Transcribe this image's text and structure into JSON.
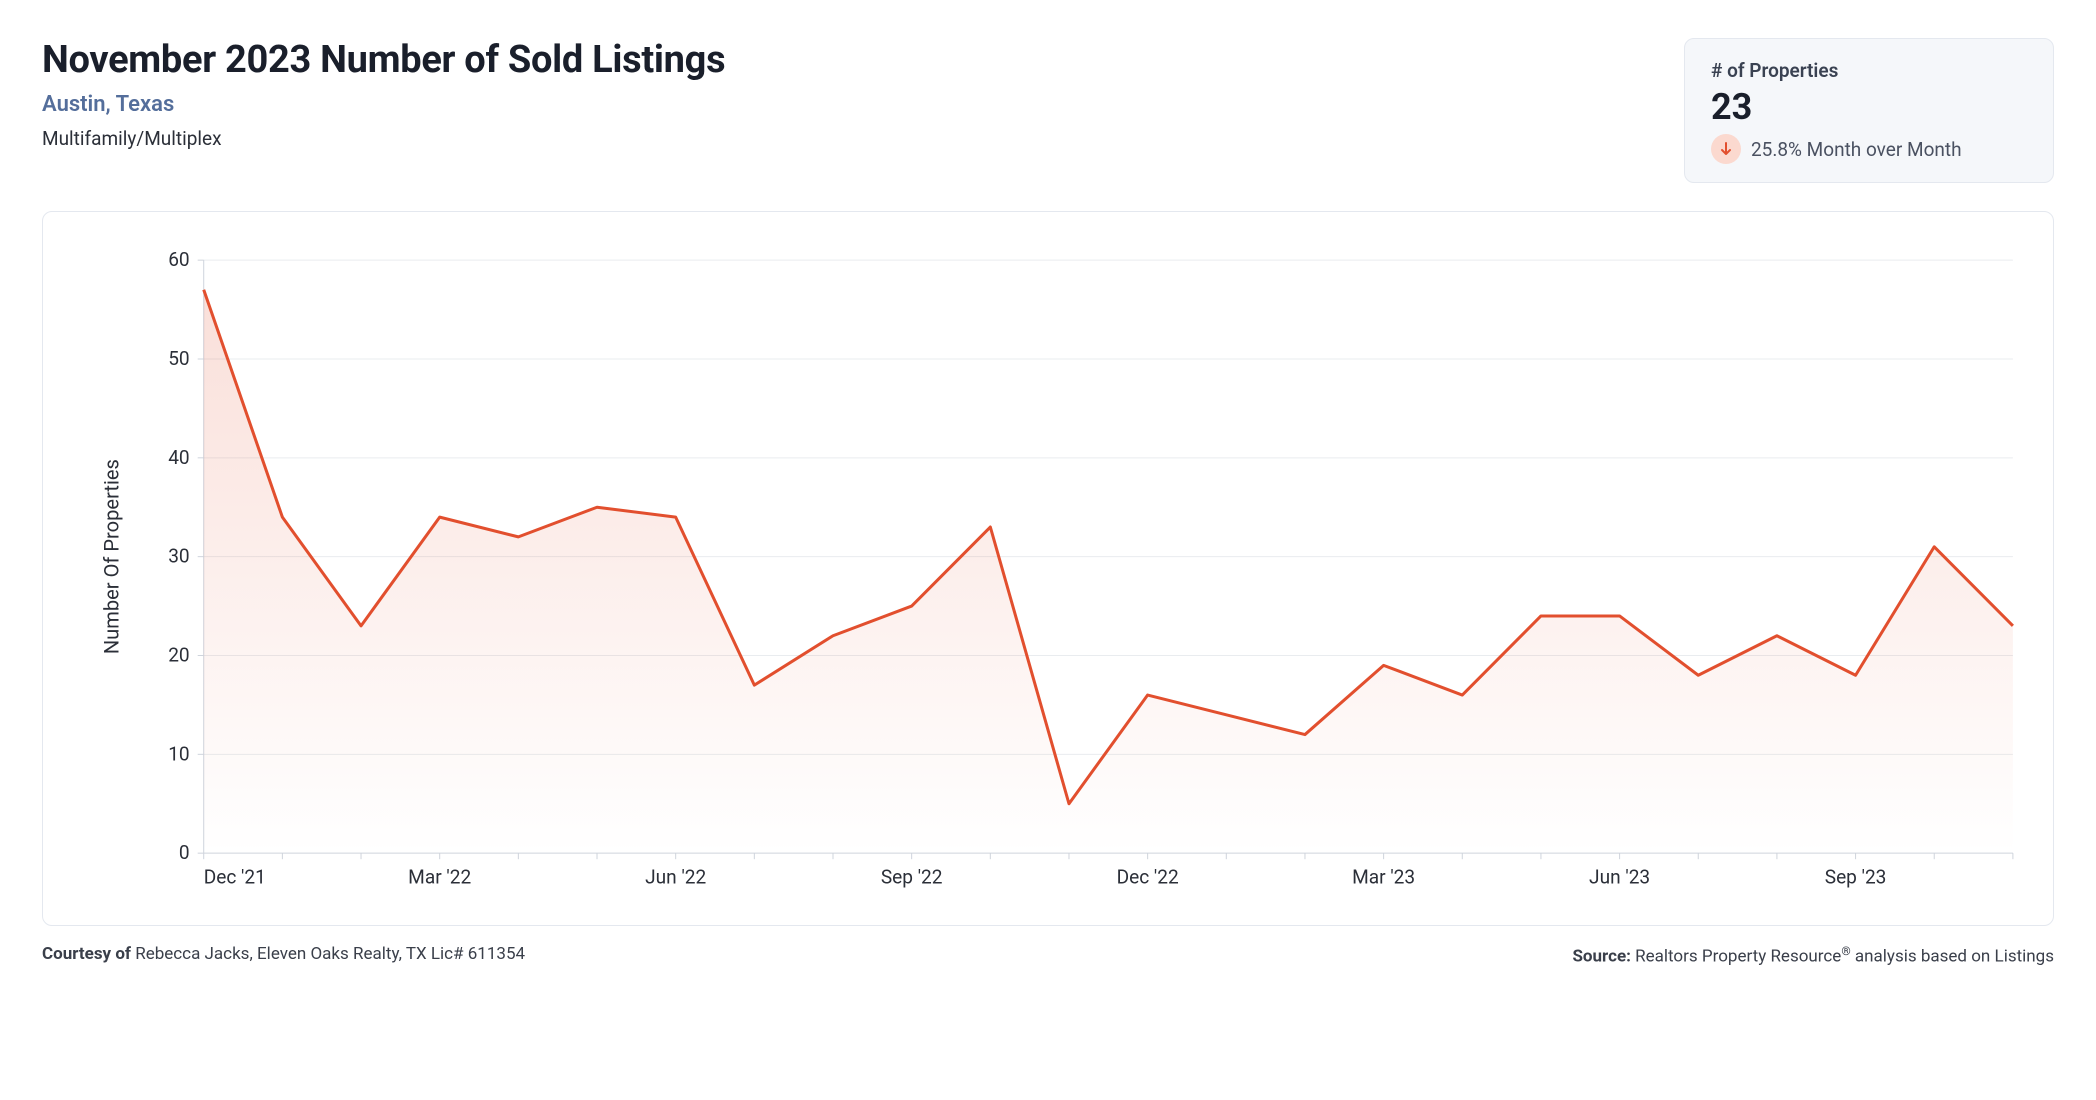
{
  "header": {
    "title": "November 2023 Number of Sold Listings",
    "location": "Austin, Texas",
    "category": "Multifamily/Multiplex"
  },
  "stat": {
    "label": "# of Properties",
    "value": "23",
    "change_text": "25.8% Month over Month",
    "direction": "down",
    "badge_bg": "#fbd9cf",
    "arrow_color": "#e24f2e"
  },
  "chart": {
    "type": "area-line",
    "y_label": "Number Of Properties",
    "ylim": [
      0,
      60
    ],
    "ytick_step": 10,
    "line_color": "#e24f2e",
    "line_width": 3,
    "fill_top_color": "rgba(226,79,46,0.18)",
    "fill_bottom_color": "rgba(226,79,46,0.0)",
    "grid_color": "#e9ecef",
    "axis_color": "#cfd4dc",
    "background_color": "#ffffff",
    "tick_fontsize": 19,
    "axis_title_fontsize": 20,
    "x_labels": [
      "Dec '21",
      "",
      "",
      "Mar '22",
      "",
      "",
      "Jun '22",
      "",
      "",
      "Sep '22",
      "",
      "",
      "Dec '22",
      "",
      "",
      "Mar '23",
      "",
      "",
      "Jun '23",
      "",
      "",
      "Sep '23",
      "",
      ""
    ],
    "values": [
      57,
      34,
      23,
      34,
      32,
      35,
      34,
      17,
      22,
      25,
      33,
      5,
      16,
      14,
      12,
      19,
      16,
      24,
      24,
      18,
      22,
      18,
      31,
      23
    ]
  },
  "footer": {
    "courtesy_label": "Courtesy of",
    "courtesy_text": " Rebecca Jacks, Eleven Oaks Realty, TX Lic# 611354",
    "source_label": "Source:",
    "source_text": " Realtors Property Resource",
    "source_suffix": " analysis based on Listings"
  }
}
